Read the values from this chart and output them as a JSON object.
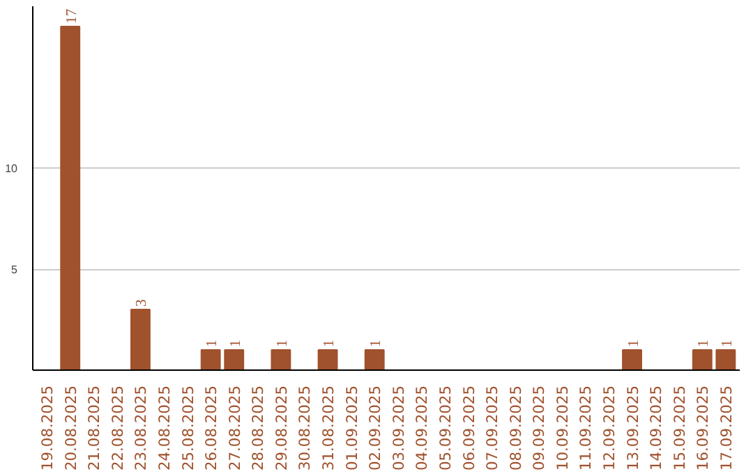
{
  "chart_data": {
    "type": "bar",
    "categories": [
      "19.08.2025",
      "20.08.2025",
      "21.08.2025",
      "22.08.2025",
      "23.08.2025",
      "24.08.2025",
      "25.08.2025",
      "26.08.2025",
      "27.08.2025",
      "28.08.2025",
      "29.08.2025",
      "30.08.2025",
      "31.08.2025",
      "01.09.2025",
      "02.09.2025",
      "03.09.2025",
      "04.09.2025",
      "05.09.2025",
      "06.09.2025",
      "07.09.2025",
      "08.09.2025",
      "09.09.2025",
      "10.09.2025",
      "11.09.2025",
      "12.09.2025",
      "13.09.2025",
      "14.09.2025",
      "15.09.2025",
      "16.09.2025",
      "17.09.2025"
    ],
    "values": [
      0,
      17,
      0,
      0,
      3,
      0,
      0,
      1,
      1,
      0,
      1,
      0,
      1,
      0,
      1,
      0,
      0,
      0,
      0,
      0,
      0,
      0,
      0,
      0,
      0,
      1,
      0,
      0,
      1,
      1
    ],
    "value_labels": [
      null,
      "17",
      null,
      null,
      "3",
      null,
      null,
      "1",
      "1",
      null,
      "1",
      null,
      "1",
      null,
      "1",
      null,
      null,
      null,
      null,
      null,
      null,
      null,
      null,
      null,
      null,
      "1",
      null,
      null,
      "1",
      "1"
    ],
    "color": "#a0522d",
    "ylim": [
      0,
      18
    ],
    "yticks": [
      5,
      10
    ],
    "grid": "y"
  }
}
